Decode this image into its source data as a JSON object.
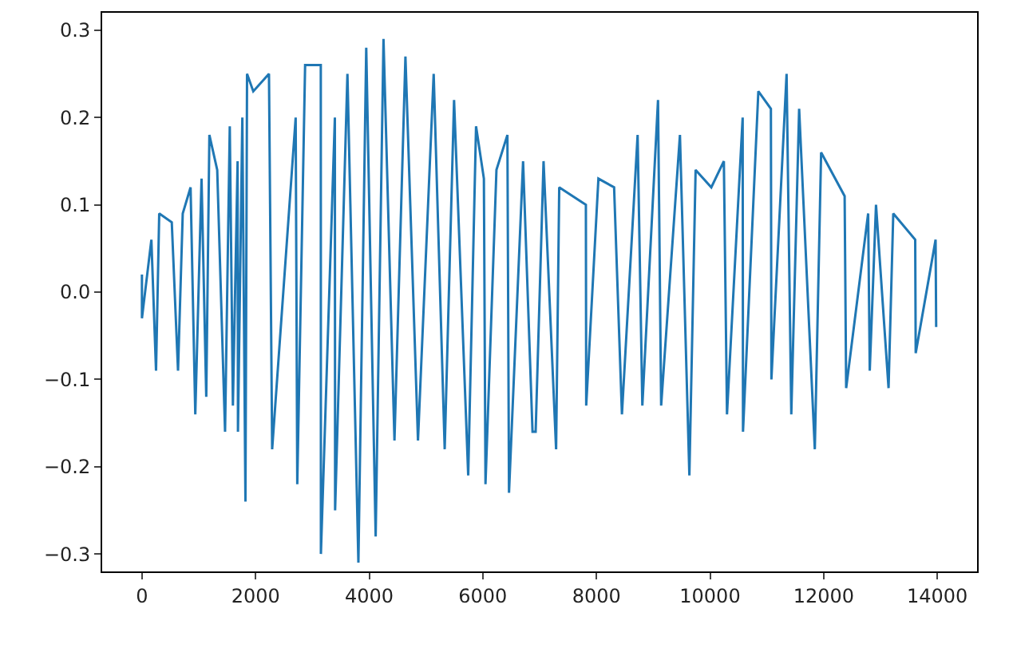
{
  "chart_data": {
    "type": "line",
    "x": [
      0,
      0,
      166,
      248,
      304,
      525,
      635,
      718,
      856,
      939,
      1049,
      1132,
      1187,
      1325,
      1463,
      1546,
      1601,
      1684,
      1690,
      1767,
      1822,
      1850,
      1960,
      2236,
      2292,
      2706,
      2734,
      2872,
      3148,
      3150,
      3396,
      3400,
      3617,
      3810,
      3948,
      4114,
      4252,
      4445,
      4638,
      4859,
      5135,
      5329,
      5494,
      5743,
      5881,
      6019,
      6047,
      6240,
      6433,
      6461,
      6709,
      6875,
      6930,
      7069,
      7290,
      7345,
      7814,
      7820,
      8035,
      8311,
      8449,
      8725,
      8808,
      9084,
      9139,
      9470,
      9636,
      9746,
      10022,
      10243,
      10298,
      10574,
      10580,
      10850,
      11071,
      11080,
      11347,
      11430,
      11568,
      11844,
      11955,
      12369,
      12396,
      12783,
      12811,
      12921,
      13142,
      13225,
      13611,
      13620,
      13970,
      13980
    ],
    "series": [
      {
        "color": "#1f77b4",
        "values": [
          0.02,
          -0.03,
          0.06,
          -0.09,
          0.09,
          0.08,
          -0.09,
          0.09,
          0.12,
          -0.14,
          0.13,
          -0.12,
          0.18,
          0.14,
          -0.16,
          0.19,
          -0.13,
          0.15,
          -0.16,
          0.2,
          -0.24,
          0.25,
          0.23,
          0.25,
          -0.18,
          0.2,
          -0.22,
          0.26,
          0.26,
          -0.3,
          0.2,
          -0.25,
          0.25,
          -0.31,
          0.28,
          -0.28,
          0.29,
          -0.17,
          0.27,
          -0.17,
          0.25,
          -0.18,
          0.22,
          -0.21,
          0.19,
          0.13,
          -0.22,
          0.14,
          0.18,
          -0.23,
          0.15,
          -0.16,
          -0.16,
          0.15,
          -0.18,
          0.12,
          0.1,
          -0.13,
          0.13,
          0.12,
          -0.14,
          0.18,
          -0.13,
          0.22,
          -0.13,
          0.18,
          -0.21,
          0.14,
          0.12,
          0.15,
          -0.14,
          0.2,
          -0.16,
          0.23,
          0.21,
          -0.1,
          0.25,
          -0.14,
          0.21,
          -0.18,
          0.16,
          0.11,
          -0.11,
          0.09,
          -0.09,
          0.1,
          -0.11,
          0.09,
          0.06,
          -0.07,
          0.06,
          -0.04
        ]
      }
    ],
    "xlim": [
      -700,
      14700
    ],
    "xticks": [
      0,
      2000,
      4000,
      6000,
      8000,
      10000,
      12000,
      14000
    ],
    "ylim": [
      -0.32,
      0.32
    ],
    "yticks": [
      {
        "value": -0.3,
        "label": "−0.3"
      },
      {
        "value": -0.2,
        "label": "−0.2"
      },
      {
        "value": -0.1,
        "label": "−0.1"
      },
      {
        "value": 0,
        "label": "0.0"
      },
      {
        "value": 0.1,
        "label": "0.1"
      },
      {
        "value": 0.2,
        "label": "0.2"
      },
      {
        "value": 0.3,
        "label": "0.3"
      }
    ],
    "marker": "none",
    "line_style": "solid"
  }
}
